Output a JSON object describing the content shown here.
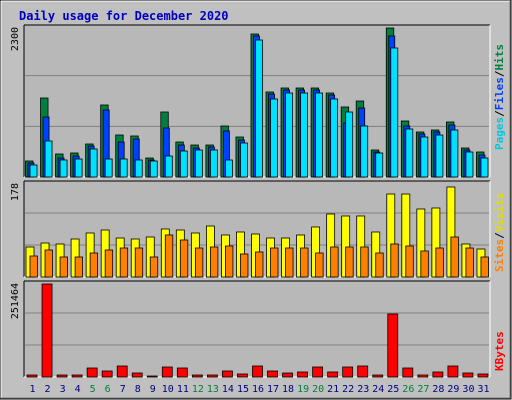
{
  "title": "Daily usage for December 2020",
  "colors": {
    "background": "#c0c0c0",
    "plot_bg": "#b8b8b8",
    "grid": "#808080",
    "title_color": "#0000c0",
    "hits": "#008040",
    "files": "#0040ff",
    "pages": "#00e0ff",
    "sites": "#ff8000",
    "visits": "#ffff00",
    "kbytes": "#ff0000",
    "weekend_label": "#008040",
    "weekday_label": "#000080"
  },
  "right_labels": {
    "pages": "Pages",
    "files": "Files",
    "hits": "Hits",
    "sep": "/",
    "sites": "Sites",
    "visits": "Visits",
    "kbytes": "KBytes"
  },
  "chart_data": [
    {
      "type": "bar",
      "title": "Daily usage for December 2020",
      "ymax_label": "2300",
      "ylim": [
        0,
        2300
      ],
      "categories": [
        "1",
        "2",
        "3",
        "4",
        "5",
        "6",
        "7",
        "8",
        "9",
        "10",
        "11",
        "12",
        "13",
        "14",
        "15",
        "16",
        "17",
        "18",
        "19",
        "20",
        "21",
        "22",
        "23",
        "24",
        "25",
        "26",
        "27",
        "28",
        "29",
        "30",
        "31"
      ],
      "weekend_days": [
        "5",
        "6",
        "12",
        "13",
        "19",
        "20",
        "26",
        "27"
      ],
      "series": [
        {
          "name": "Hits",
          "values": [
            250,
            1220,
            360,
            370,
            510,
            1110,
            650,
            640,
            290,
            1010,
            540,
            490,
            490,
            790,
            620,
            2210,
            1310,
            1380,
            1380,
            1380,
            1290,
            1080,
            1180,
            420,
            2300,
            860,
            700,
            730,
            850,
            440,
            380
          ]
        },
        {
          "name": "Files",
          "values": [
            220,
            930,
            300,
            320,
            480,
            1030,
            540,
            580,
            270,
            760,
            500,
            450,
            470,
            710,
            570,
            2170,
            1280,
            1340,
            1340,
            1340,
            1260,
            840,
            1060,
            390,
            2170,
            780,
            660,
            690,
            800,
            410,
            340
          ]
        },
        {
          "name": "Pages",
          "values": [
            190,
            560,
            260,
            280,
            430,
            280,
            280,
            270,
            250,
            330,
            400,
            420,
            420,
            270,
            530,
            2120,
            1210,
            1290,
            1300,
            1290,
            1200,
            1000,
            780,
            370,
            1990,
            740,
            620,
            650,
            730,
            380,
            300
          ]
        }
      ]
    },
    {
      "type": "bar",
      "ymax_label": "178",
      "ylim": [
        0,
        178
      ],
      "categories": [
        "1",
        "2",
        "3",
        "4",
        "5",
        "6",
        "7",
        "8",
        "9",
        "10",
        "11",
        "12",
        "13",
        "14",
        "15",
        "16",
        "17",
        "18",
        "19",
        "20",
        "21",
        "22",
        "23",
        "24",
        "25",
        "26",
        "27",
        "28",
        "29",
        "30",
        "31"
      ],
      "series": [
        {
          "name": "Visits",
          "values": [
            58,
            66,
            63,
            72,
            84,
            89,
            74,
            73,
            77,
            92,
            90,
            85,
            97,
            81,
            87,
            82,
            74,
            75,
            80,
            95,
            121,
            117,
            117,
            86,
            158,
            158,
            130,
            133,
            173,
            63,
            54
          ]
        },
        {
          "name": "Sites",
          "values": [
            40,
            52,
            38,
            39,
            46,
            52,
            56,
            56,
            38,
            80,
            70,
            55,
            58,
            60,
            44,
            48,
            55,
            55,
            56,
            46,
            58,
            58,
            58,
            46,
            63,
            60,
            50,
            55,
            77,
            56,
            38
          ]
        }
      ]
    },
    {
      "type": "bar",
      "ymax_label": "251464",
      "ylim": [
        0,
        251464
      ],
      "categories": [
        "1",
        "2",
        "3",
        "4",
        "5",
        "6",
        "7",
        "8",
        "9",
        "10",
        "11",
        "12",
        "13",
        "14",
        "15",
        "16",
        "17",
        "18",
        "19",
        "20",
        "21",
        "22",
        "23",
        "24",
        "25",
        "26",
        "27",
        "28",
        "29",
        "30",
        "31"
      ],
      "series": [
        {
          "name": "KBytes",
          "values": [
            5500,
            251464,
            6000,
            6000,
            23000,
            16000,
            31000,
            12000,
            4000,
            26000,
            25000,
            6500,
            6500,
            15000,
            9000,
            29000,
            16000,
            12000,
            13000,
            28000,
            13000,
            28000,
            31000,
            6500,
            170000,
            23000,
            6500,
            14000,
            29000,
            11000,
            9000
          ]
        }
      ]
    }
  ]
}
